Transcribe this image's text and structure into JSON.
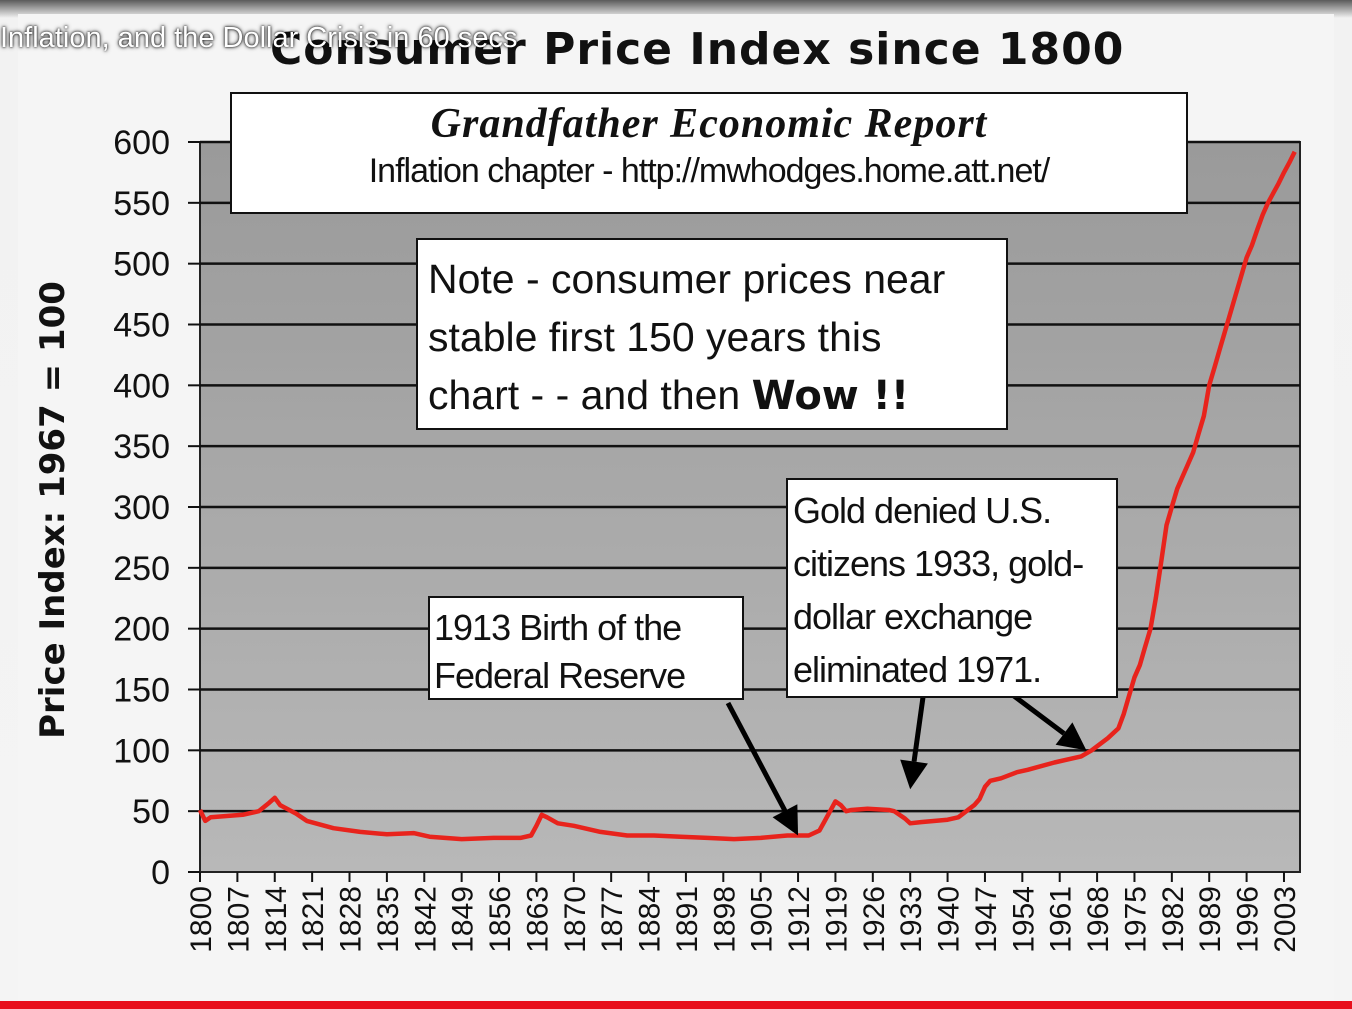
{
  "video": {
    "title": "Inflation, and the Dollar Crisis in 60 secs"
  },
  "chart_data": {
    "type": "line",
    "title": "Consumer Price Index since 1800",
    "ylabel": "Price Index: 1967 = 100",
    "xlabel": "",
    "ylim": [
      0,
      600
    ],
    "yticks": [
      0,
      50,
      100,
      150,
      200,
      250,
      300,
      350,
      400,
      450,
      500,
      550,
      600
    ],
    "xlim": [
      1800,
      2006
    ],
    "xticks": [
      1800,
      1807,
      1814,
      1821,
      1828,
      1835,
      1842,
      1849,
      1856,
      1863,
      1870,
      1877,
      1884,
      1891,
      1898,
      1905,
      1912,
      1919,
      1926,
      1933,
      1940,
      1947,
      1954,
      1961,
      1968,
      1975,
      1982,
      1989,
      1996,
      2003
    ],
    "grid": true,
    "legend": "none",
    "series": [
      {
        "color": "#e8231c",
        "x": [
          1800,
          1801,
          1802,
          1805,
          1808,
          1811,
          1813,
          1814,
          1815,
          1818,
          1820,
          1825,
          1830,
          1835,
          1840,
          1843,
          1849,
          1855,
          1860,
          1862,
          1863,
          1864,
          1865,
          1867,
          1870,
          1875,
          1880,
          1885,
          1890,
          1895,
          1900,
          1905,
          1910,
          1914,
          1916,
          1917,
          1918,
          1919,
          1920,
          1921,
          1922,
          1925,
          1929,
          1930,
          1932,
          1933,
          1935,
          1940,
          1942,
          1945,
          1946,
          1947,
          1948,
          1950,
          1953,
          1955,
          1960,
          1965,
          1967,
          1970,
          1972,
          1973,
          1974,
          1975,
          1976,
          1977,
          1978,
          1979,
          1980,
          1981,
          1982,
          1983,
          1984,
          1985,
          1986,
          1987,
          1988,
          1989,
          1990,
          1991,
          1992,
          1993,
          1994,
          1995,
          1996,
          1997,
          1998,
          1999,
          2000,
          2001,
          2002,
          2003,
          2004,
          2005
        ],
        "y": [
          51,
          42,
          45,
          46,
          47,
          50,
          57,
          61,
          55,
          48,
          42,
          36,
          33,
          31,
          32,
          29,
          27,
          28,
          28,
          30,
          38,
          47,
          45,
          40,
          38,
          33,
          30,
          30,
          29,
          28,
          27,
          28,
          30,
          30,
          34,
          42,
          50,
          58,
          55,
          50,
          51,
          52,
          51,
          50,
          44,
          40,
          41,
          43,
          45,
          55,
          60,
          70,
          75,
          77,
          82,
          84,
          90,
          95,
          100,
          110,
          118,
          130,
          145,
          160,
          170,
          185,
          200,
          225,
          255,
          285,
          300,
          315,
          325,
          335,
          345,
          360,
          375,
          400,
          415,
          430,
          445,
          460,
          475,
          490,
          505,
          515,
          528,
          540,
          550,
          558,
          566,
          575,
          583,
          592
        ]
      }
    ]
  },
  "header_box": {
    "title": "Grandfather Economic Report",
    "subtitle": "Inflation chapter - http://mwhodges.home.att.net/"
  },
  "annotations": {
    "note": {
      "line1": "Note - consumer prices near",
      "line2": "stable first 150 years this",
      "line3_prefix": "chart - - and then ",
      "line3_bold": "Wow !!"
    },
    "fed": {
      "line1": "1913  Birth of the",
      "line2": "Federal Reserve"
    },
    "gold": {
      "line1": "Gold denied U.S.",
      "line2": "citizens 1933, gold-",
      "line3": "dollar exchange",
      "line4": "eliminated  1971."
    },
    "arrows": [
      {
        "name": "fed-arrow",
        "x": 1912,
        "y": 30
      },
      {
        "name": "gold-1933-arrow",
        "x": 1933,
        "y": 68
      },
      {
        "name": "gold-1971-arrow",
        "x": 1966,
        "y": 100
      }
    ]
  }
}
